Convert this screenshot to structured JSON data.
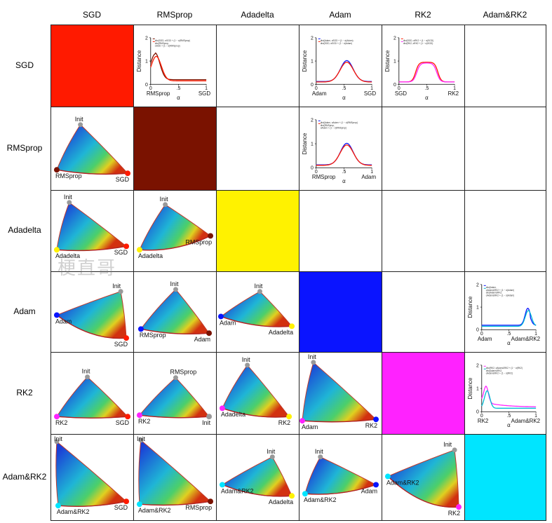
{
  "optimizers": [
    "SGD",
    "RMSprop",
    "Adadelta",
    "Adam",
    "RK2",
    "Adam&RK2"
  ],
  "colors": [
    "#ff1a00",
    "#7a1200",
    "#fff200",
    "#0a14ff",
    "#ff22ff",
    "#00e5ff"
  ],
  "watermark": "梗直哥",
  "plot_axis": {
    "ylabel": "Distance",
    "xlabel": "α",
    "y_ticks": [
      "0",
      "1",
      "2"
    ],
    "x_ticks": [
      "0",
      ".5",
      "1"
    ]
  },
  "plots": [
    {
      "row": 0,
      "col": 1,
      "left": "RMSprop",
      "right": "SGD",
      "shape": "decay",
      "legend": [
        "dist(SGD, αSGD + (1 − α)RMSprop)",
        "dist(RMSprop,",
        "αSGD + (1 − α)RMSprop)"
      ]
    },
    {
      "row": 0,
      "col": 3,
      "left": "Adam",
      "right": "SGD",
      "shape": "bump",
      "legend": [
        "dist(Adam, αSGD + (1 − α)Adam)",
        "dist(SGD, αSGD + (1 − α)Adam)"
      ]
    },
    {
      "row": 0,
      "col": 4,
      "left": "SGD",
      "right": "RK2",
      "shape": "plateau",
      "legend": [
        "dist(SGD, αRK2 + (1 − α)SGD)",
        "dist(RK2, αRK2 + (1 − α)SGD)"
      ]
    },
    {
      "row": 1,
      "col": 3,
      "left": "RMSprop",
      "right": "Adam",
      "shape": "bump",
      "legend": [
        "dist(Adam, αAdam + (1 − α)RMSprop)",
        "dist(RMSprop,",
        "αAdam + (1 − α)RMSprop)"
      ]
    },
    {
      "row": 3,
      "col": 5,
      "left": "Adam",
      "right": "Adam&RK2",
      "shape": "rise",
      "legend": [
        "dist(Adam,",
        "αAdam&RK2 + (1 − α)Adam)",
        "dist(Adam&RK2,",
        "αAdam&RK2 + (1 − α)Adam)"
      ]
    },
    {
      "row": 4,
      "col": 5,
      "left": "RK2",
      "right": "Adam&RK2",
      "shape": "spike",
      "legend": [
        "dist(RK2, αAdam&RK2 + (1 − α)RK2)",
        "dist(Adam&RK2,",
        "αAdam&RK2 + (1 − α)RK2)"
      ]
    }
  ],
  "surfaces": [
    {
      "row": 1,
      "col": 0,
      "init": "Init",
      "a": "RMSprop",
      "b": "SGD"
    },
    {
      "row": 2,
      "col": 0,
      "init": "Init",
      "a": "Adadelta",
      "b": "SGD"
    },
    {
      "row": 2,
      "col": 1,
      "init": "Init",
      "a": "Adadelta",
      "b": "RMSprop"
    },
    {
      "row": 3,
      "col": 0,
      "init": "Init",
      "a": "Adam",
      "b": "SGD"
    },
    {
      "row": 3,
      "col": 1,
      "init": "Init",
      "a": "RMSprop",
      "b": "Adam"
    },
    {
      "row": 3,
      "col": 2,
      "init": "Init",
      "a": "Adam",
      "b": "Adadelta"
    },
    {
      "row": 4,
      "col": 0,
      "init": "Init",
      "a": "RK2",
      "b": "SGD"
    },
    {
      "row": 4,
      "col": 1,
      "init": "RMSprop",
      "a": "RK2",
      "b": "Init"
    },
    {
      "row": 4,
      "col": 2,
      "init": "Init",
      "a": "Adadelta",
      "b": "RK2"
    },
    {
      "row": 4,
      "col": 3,
      "init": "Init",
      "a": "Adam",
      "b": "RK2"
    },
    {
      "row": 5,
      "col": 0,
      "init": "Init",
      "a": "Adam&RK2",
      "b": "SGD"
    },
    {
      "row": 5,
      "col": 1,
      "init": "Init",
      "a": "Adam&RK2",
      "b": "RMSprop"
    },
    {
      "row": 5,
      "col": 2,
      "init": "Init",
      "a": "Adam&RK2",
      "b": "Adadelta"
    },
    {
      "row": 5,
      "col": 3,
      "init": "Init",
      "a": "Adam&RK2",
      "b": "Adam"
    },
    {
      "row": 5,
      "col": 4,
      "init": "Init",
      "a": "Adam&RK2",
      "b": "RK2"
    }
  ]
}
